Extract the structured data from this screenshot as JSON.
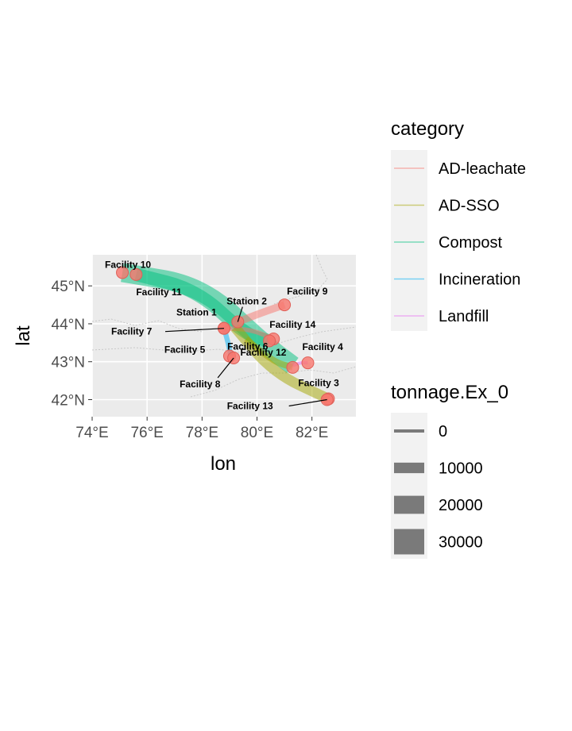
{
  "map": {
    "xlabel": "lon",
    "ylabel": "lat",
    "lon_ticks": [
      {
        "value": 74,
        "label": "74°E"
      },
      {
        "value": 76,
        "label": "76°E"
      },
      {
        "value": 78,
        "label": "78°E"
      },
      {
        "value": 80,
        "label": "80°E"
      },
      {
        "value": 82,
        "label": "82°E"
      }
    ],
    "lat_ticks": [
      {
        "value": 42,
        "label": "42°N"
      },
      {
        "value": 43,
        "label": "43°N"
      },
      {
        "value": 44,
        "label": "44°N"
      },
      {
        "value": 45,
        "label": "45°N"
      }
    ],
    "xlim": [
      74.0,
      83.6
    ],
    "ylim": [
      41.55,
      45.82
    ],
    "facility_color": "#f8766d",
    "category_colors": {
      "AD-leachate": "#f8766d",
      "AD-SSO": "#a3a500",
      "Compost": "#00bf7d",
      "Incineration": "#00b0f6",
      "Landfill": "#e76bf3"
    },
    "facilities": [
      {
        "name": "Facility 10",
        "lon": 75.1,
        "lat": 45.35
      },
      {
        "name": "Facility 11",
        "lon": 75.6,
        "lat": 45.3
      },
      {
        "name": "Station 2",
        "lon": 79.3,
        "lat": 44.05
      },
      {
        "name": "Station 1",
        "lon": 78.8,
        "lat": 43.88
      },
      {
        "name": "Facility 9",
        "lon": 81.0,
        "lat": 44.5
      },
      {
        "name": "Facility 7",
        "lon": 78.8,
        "lat": 43.88
      },
      {
        "name": "Facility 14",
        "lon": 80.6,
        "lat": 43.6
      },
      {
        "name": "Facility 6",
        "lon": 80.45,
        "lat": 43.55
      },
      {
        "name": "Facility 5",
        "lon": 79.0,
        "lat": 43.15
      },
      {
        "name": "Facility 12",
        "lon": 81.3,
        "lat": 42.85
      },
      {
        "name": "Facility 4",
        "lon": 81.85,
        "lat": 42.97
      },
      {
        "name": "Facility 8",
        "lon": 79.15,
        "lat": 43.1
      },
      {
        "name": "Facility 3",
        "lon": 82.6,
        "lat": 42.02
      },
      {
        "name": "Facility 13",
        "lon": 82.55,
        "lat": 42.0
      }
    ],
    "flows": [
      {
        "category": "Compost",
        "path": [
          [
            75.1,
            45.35
          ],
          [
            78.0,
            45.0
          ],
          [
            80.2,
            43.5
          ],
          [
            81.3,
            42.9
          ]
        ],
        "tonnage": 30000
      },
      {
        "category": "Compost",
        "path": [
          [
            75.6,
            45.3
          ],
          [
            77.8,
            44.9
          ],
          [
            79.6,
            43.7
          ],
          [
            80.45,
            43.55
          ]
        ],
        "tonnage": 20000
      },
      {
        "category": "AD-leachate",
        "path": [
          [
            79.3,
            44.05
          ],
          [
            80.2,
            44.3
          ],
          [
            81.0,
            44.5
          ]
        ],
        "tonnage": 10000
      },
      {
        "category": "AD-leachate",
        "path": [
          [
            78.8,
            43.88
          ],
          [
            79.8,
            43.85
          ],
          [
            80.6,
            43.6
          ]
        ],
        "tonnage": 5000
      },
      {
        "category": "AD-SSO",
        "path": [
          [
            79.2,
            43.9
          ],
          [
            80.6,
            42.7
          ],
          [
            82.6,
            42.02
          ]
        ],
        "tonnage": 15000
      },
      {
        "category": "AD-SSO",
        "path": [
          [
            79.6,
            43.6
          ],
          [
            80.6,
            43.0
          ],
          [
            81.3,
            42.85
          ]
        ],
        "tonnage": 8000
      },
      {
        "category": "Incineration",
        "path": [
          [
            78.8,
            43.88
          ],
          [
            78.95,
            43.5
          ],
          [
            79.05,
            43.15
          ]
        ],
        "tonnage": 6000
      },
      {
        "category": "Landfill",
        "path": [
          [
            81.3,
            42.9
          ],
          [
            81.6,
            42.98
          ],
          [
            81.85,
            42.97
          ]
        ],
        "tonnage": 3000
      }
    ]
  },
  "legend_category": {
    "title": "category",
    "items": [
      {
        "label": "AD-leachate",
        "color": "#f8766d"
      },
      {
        "label": "AD-SSO",
        "color": "#a3a500"
      },
      {
        "label": "Compost",
        "color": "#00bf7d"
      },
      {
        "label": "Incineration",
        "color": "#00b0f6"
      },
      {
        "label": "Landfill",
        "color": "#e76bf3"
      }
    ]
  },
  "legend_tonnage": {
    "title": "tonnage.Ex_0",
    "items": [
      {
        "label": "0",
        "value": 0
      },
      {
        "label": "10000",
        "value": 10000
      },
      {
        "label": "20000",
        "value": 20000
      },
      {
        "label": "30000",
        "value": 30000
      }
    ]
  }
}
